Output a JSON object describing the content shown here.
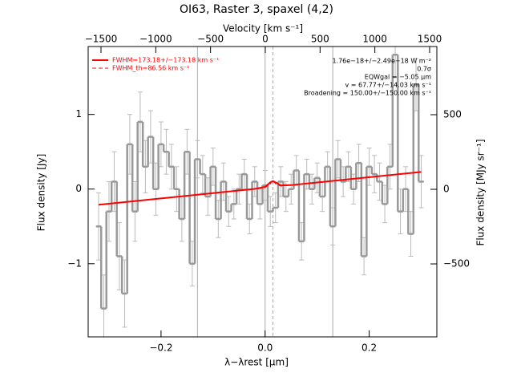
{
  "chart_data": {
    "type": "step",
    "title": "OI63, Raster 3, spaxel (4,2)",
    "xlabel": "λ−λrest [μm]",
    "ylabel": "Flux density [Jy]",
    "x2label": "Velocity [km s⁻¹]",
    "y2label": "Flux density [MJy sr⁻¹]",
    "xlim": [
      -0.34,
      0.33
    ],
    "ylim": [
      -1.98,
      1.91
    ],
    "x2lim": [
      -1617,
      1566
    ],
    "y2lim": [
      -989,
      957
    ],
    "xticks": [
      {
        "value": -0.2,
        "label": "−0.2"
      },
      {
        "value": 0,
        "label": "0.0"
      },
      {
        "value": 0.2,
        "label": "0.2"
      }
    ],
    "yticks": [
      {
        "value": -1,
        "label": "−1"
      },
      0,
      1
    ],
    "x2ticks": [
      {
        "value": -1500,
        "label": "−1500"
      },
      {
        "value": -1000,
        "label": "−1000"
      },
      {
        "value": -500,
        "label": "−500"
      },
      0,
      500,
      1000,
      1500
    ],
    "y2ticks": [
      {
        "value": -500,
        "label": "−500"
      },
      0,
      500
    ],
    "color": "#999999",
    "x": [
      -0.32,
      -0.31,
      -0.3,
      -0.29,
      -0.28,
      -0.27,
      -0.26,
      -0.25,
      -0.24,
      -0.23,
      -0.22,
      -0.21,
      -0.2,
      -0.19,
      -0.18,
      -0.17,
      -0.16,
      -0.15,
      -0.14,
      -0.13,
      -0.12,
      -0.11,
      -0.1,
      -0.09,
      -0.08,
      -0.07,
      -0.06,
      -0.05,
      -0.04,
      -0.03,
      -0.02,
      -0.01,
      0,
      0.01,
      0.02,
      0.03,
      0.04,
      0.05,
      0.06,
      0.07,
      0.08,
      0.09,
      0.1,
      0.11,
      0.12,
      0.13,
      0.14,
      0.15,
      0.16,
      0.17,
      0.18,
      0.19,
      0.2,
      0.21,
      0.22,
      0.23,
      0.24,
      0.25,
      0.26,
      0.27,
      0.28,
      0.29,
      0.3
    ],
    "values": [
      -0.5,
      -1.6,
      -0.3,
      0.1,
      -0.9,
      -1.4,
      0.6,
      -0.3,
      0.9,
      0.3,
      0.7,
      0,
      0.6,
      0.5,
      0.3,
      0,
      -0.4,
      0.5,
      -1,
      0.4,
      0.2,
      -0.1,
      0.3,
      -0.4,
      0.1,
      -0.3,
      -0.2,
      0,
      0.2,
      -0.4,
      0.1,
      -0.2,
      0.05,
      -0.3,
      -0.25,
      0.1,
      -0.1,
      0,
      0.25,
      -0.7,
      0.2,
      0,
      0.15,
      -0.1,
      0.3,
      -0.5,
      0.4,
      0.1,
      0.3,
      0,
      0.35,
      -0.9,
      0.3,
      0.2,
      0.1,
      -0.2,
      0.3,
      1.8,
      -0.3,
      0,
      -0.6,
      1.4,
      0.1
    ],
    "errors": [
      0.45,
      0.45,
      0.4,
      0.4,
      0.45,
      0.45,
      0.4,
      0.4,
      0.4,
      0.35,
      0.35,
      0.35,
      0.3,
      0.3,
      0.3,
      0.3,
      0.3,
      0.3,
      0.3,
      0.25,
      0.25,
      0.25,
      0.25,
      0.25,
      0.25,
      0.2,
      0.2,
      0.2,
      0.2,
      0.2,
      0.2,
      0.2,
      0.2,
      0.2,
      0.2,
      0.2,
      0.2,
      0.2,
      0.2,
      0.25,
      0.2,
      0.2,
      0.2,
      0.2,
      0.2,
      0.25,
      0.25,
      0.2,
      0.2,
      0.2,
      0.25,
      0.25,
      0.25,
      0.25,
      0.25,
      0.25,
      0.3,
      0.3,
      0.3,
      0.3,
      0.3,
      0.35,
      0.35
    ],
    "vlines": [
      -0.13,
      0,
      0.13
    ],
    "vline_dashed": 0.015,
    "fits": [
      {
        "name": "FWHM=173.18+/−173.18 km s⁻¹",
        "color": "#ff0000",
        "dash": false,
        "x": [
          -0.32,
          -0.1,
          -0.02,
          0,
          0.01,
          0.015,
          0.02,
          0.03,
          0.05,
          0.3
        ],
        "values": [
          -0.21,
          -0.054,
          0.003,
          0.03,
          0.09,
          0.108,
          0.09,
          0.05,
          0.053,
          0.23
        ]
      },
      {
        "name": "FWHM_th=86.56 km s⁻¹",
        "color": "#ff0000",
        "dash": true,
        "x": [
          -0.32,
          -0.1,
          -0.02,
          0,
          0.01,
          0.015,
          0.02,
          0.03,
          0.05,
          0.3
        ],
        "values": [
          -0.21,
          -0.054,
          0.003,
          0.02,
          0.07,
          0.12,
          0.07,
          0.04,
          0.053,
          0.23
        ]
      }
    ],
    "annotations": [
      "1.76e−18+/−2.49e−18 W m⁻²",
      "0.7σ",
      "EQWgal = −5.05 μm",
      "v = 67.77+/−14.03 km s⁻¹",
      "Broadening = 150.00+/−150.00 km s⁻¹"
    ]
  }
}
